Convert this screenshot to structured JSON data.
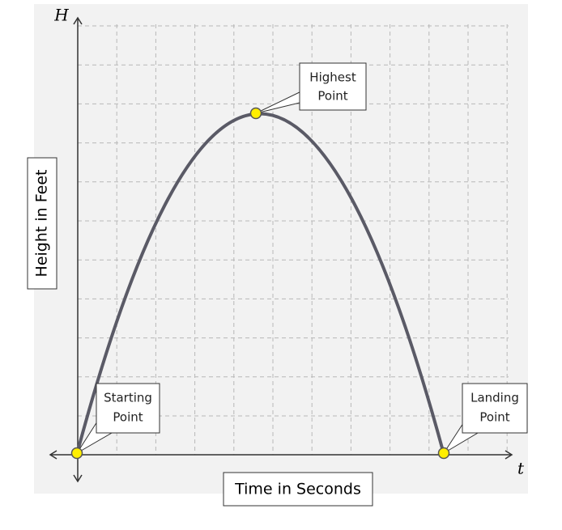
{
  "axes": {
    "y_symbol": "H",
    "x_symbol": "t",
    "y_label": "Height in Feet",
    "x_label": "Time in Seconds"
  },
  "callouts": [
    {
      "lines": [
        "Highest",
        "Point"
      ]
    },
    {
      "lines": [
        "Starting",
        "Point"
      ]
    },
    {
      "lines": [
        "Landing",
        "Point"
      ]
    }
  ]
}
